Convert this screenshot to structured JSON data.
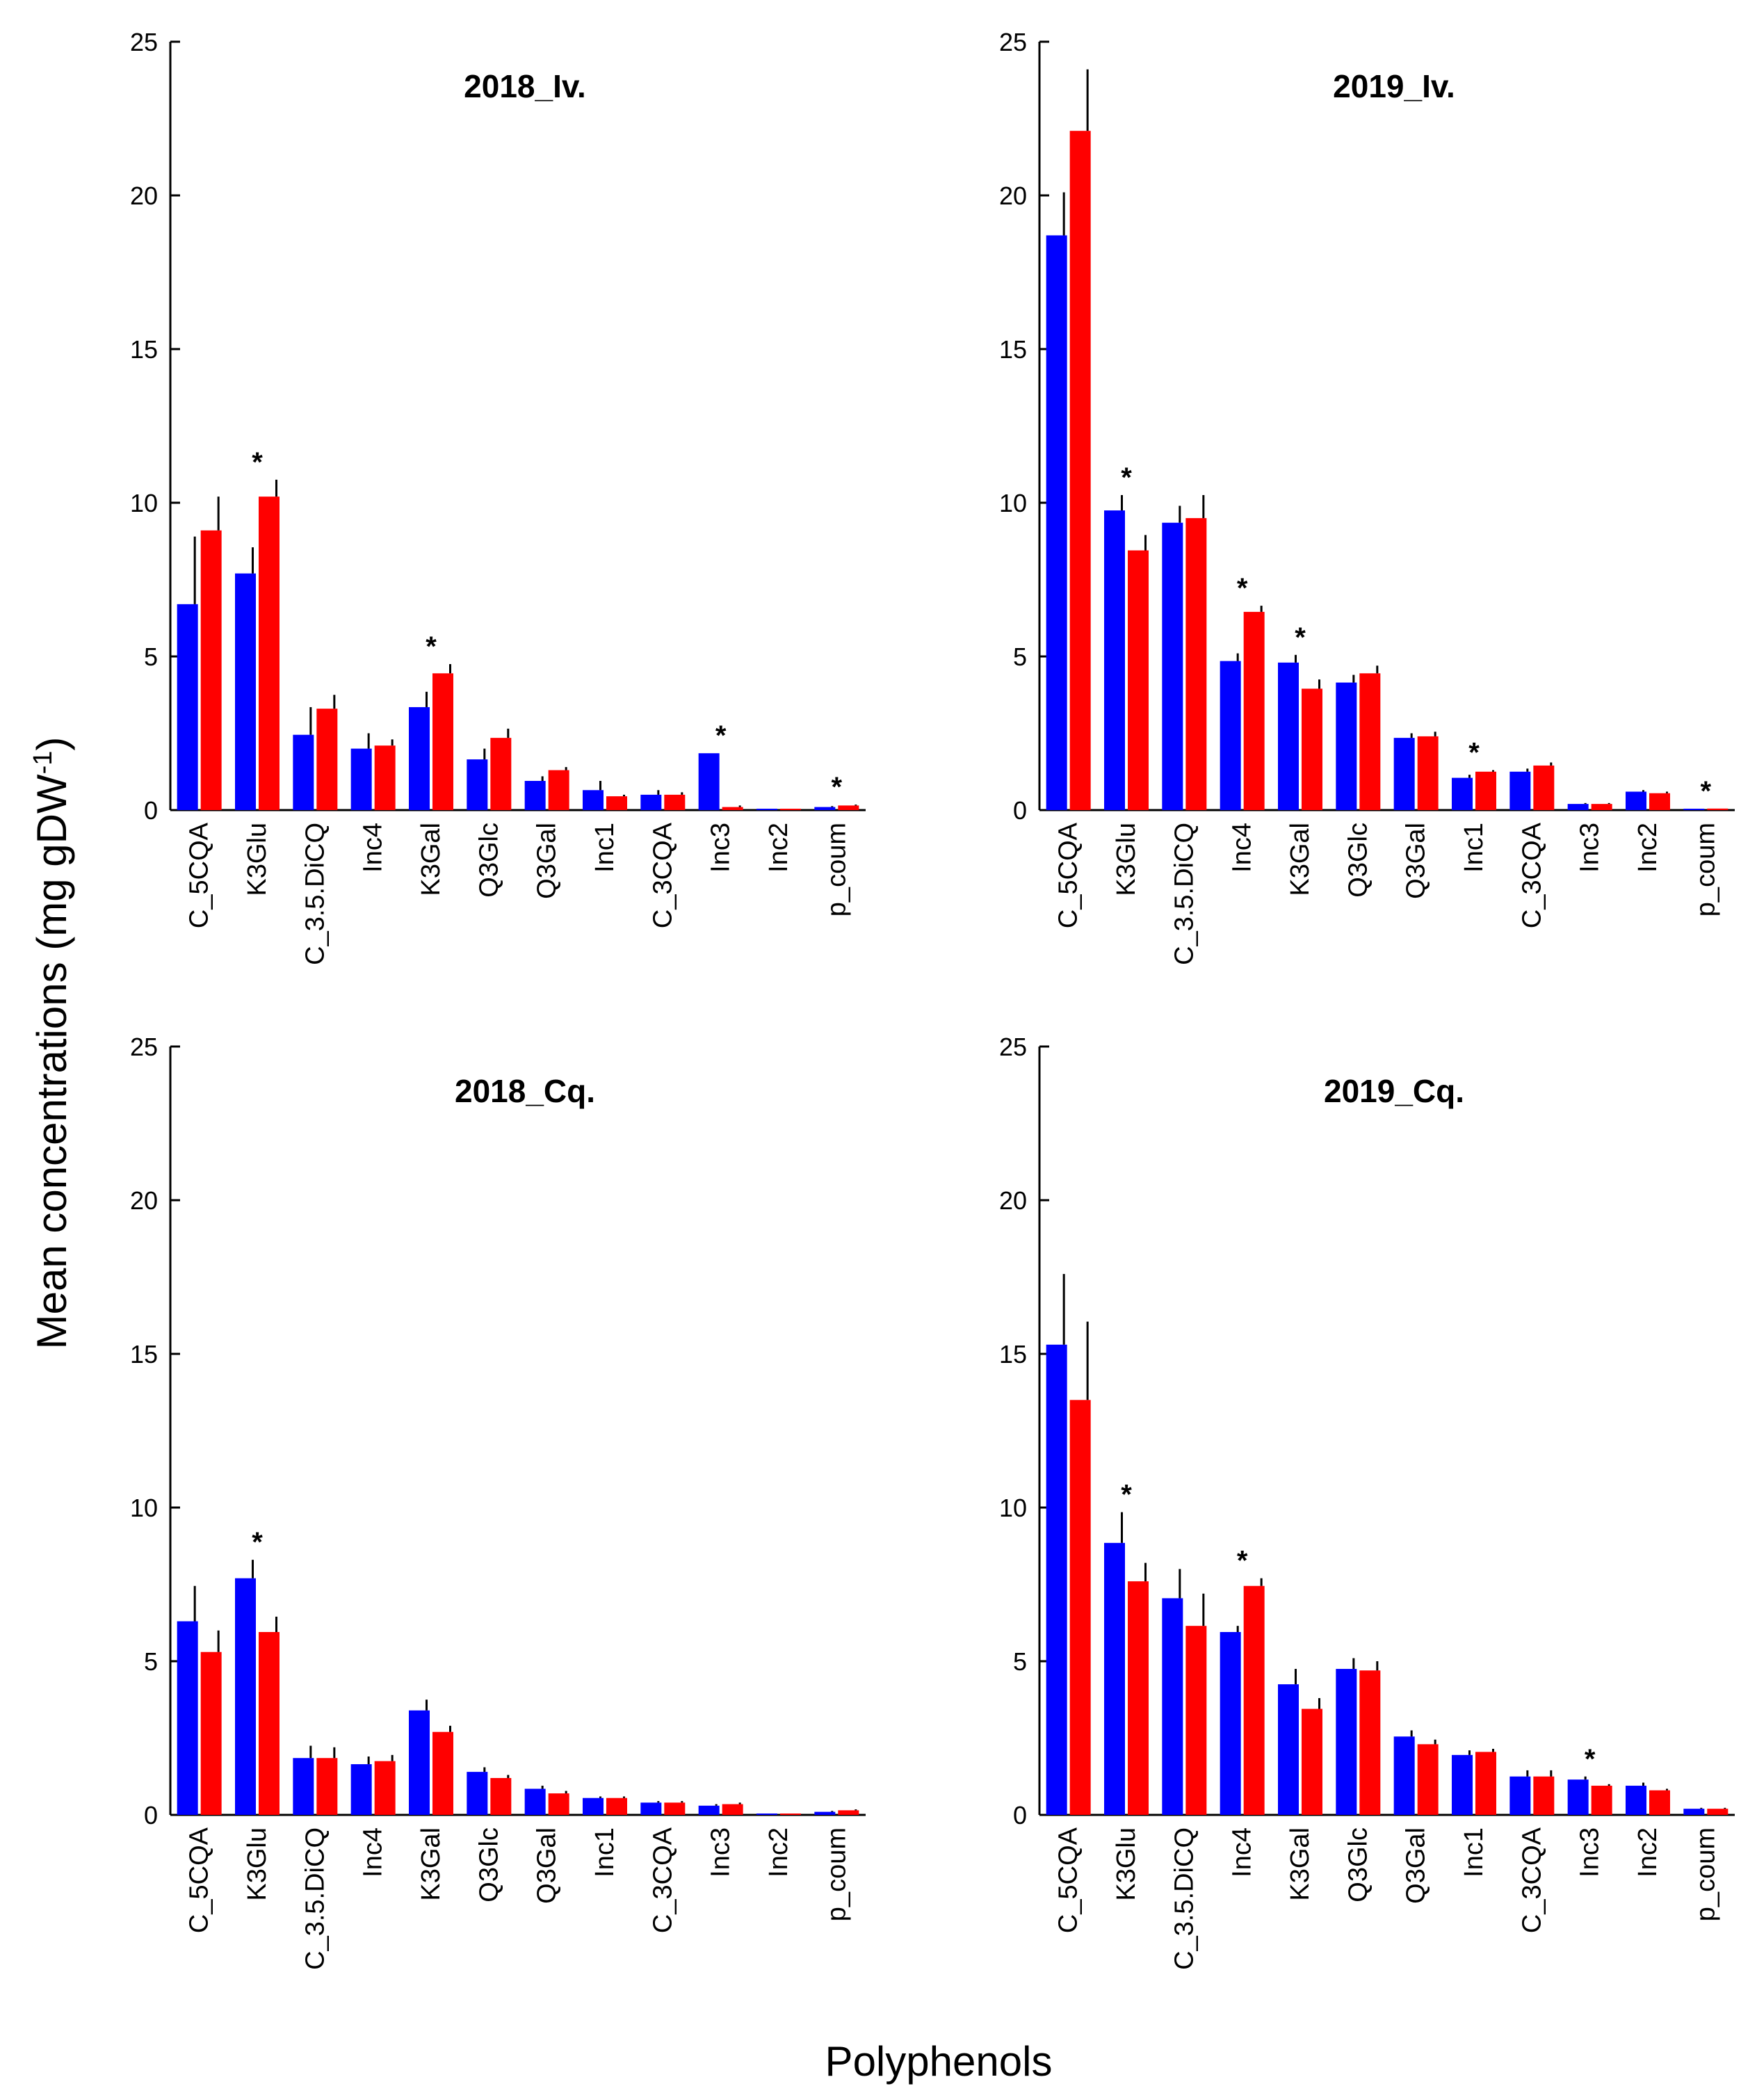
{
  "figure": {
    "ylabel_main": "Mean concentrations  (mg  gDW",
    "ylabel_sup": "-1",
    "ylabel_close": ")",
    "xlabel": "Polyphenols"
  },
  "colors": {
    "series1": "#0000ff",
    "series2": "#ff0000",
    "error": "#000000",
    "axis": "#000000"
  },
  "chart_data": [
    {
      "type": "bar",
      "title": "2018_Iv.",
      "ylim": [
        0,
        25
      ],
      "yticks": [
        0,
        5,
        10,
        15,
        20,
        25
      ],
      "categories": [
        "C_5CQA",
        "K3Glu",
        "C_3.5.DiCQ",
        "Inc4",
        "K3Gal",
        "Q3Glc",
        "Q3Gal",
        "Inc1",
        "C_3CQA",
        "Inc3",
        "Inc2",
        "p_coum"
      ],
      "series": [
        {
          "name": "blue",
          "values": [
            6.7,
            7.7,
            2.45,
            2.0,
            3.35,
            1.65,
            0.95,
            0.65,
            0.5,
            1.85,
            0.02,
            0.1
          ],
          "errors": [
            2.2,
            0.85,
            0.9,
            0.5,
            0.5,
            0.35,
            0.15,
            0.3,
            0.15,
            0.0,
            0.0,
            0.03
          ]
        },
        {
          "name": "red",
          "values": [
            9.1,
            10.2,
            3.3,
            2.1,
            4.45,
            2.35,
            1.3,
            0.45,
            0.5,
            0.1,
            0.02,
            0.15
          ],
          "errors": [
            1.1,
            0.55,
            0.45,
            0.2,
            0.3,
            0.3,
            0.1,
            0.05,
            0.08,
            0.05,
            0.0,
            0.03
          ]
        }
      ],
      "significance": [
        1,
        4,
        9,
        11
      ]
    },
    {
      "type": "bar",
      "title": "2019_Iv.",
      "ylim": [
        0,
        25
      ],
      "yticks": [
        0,
        5,
        10,
        15,
        20,
        25
      ],
      "categories": [
        "C_5CQA",
        "K3Glu",
        "C_3.5.DiCQ",
        "Inc4",
        "K3Gal",
        "Q3Glc",
        "Q3Gal",
        "Inc1",
        "C_3CQA",
        "Inc3",
        "Inc2",
        "p_coum"
      ],
      "series": [
        {
          "name": "blue",
          "values": [
            18.7,
            9.75,
            9.35,
            4.85,
            4.8,
            4.15,
            2.35,
            1.05,
            1.25,
            0.2,
            0.6,
            0.02
          ],
          "errors": [
            1.4,
            0.5,
            0.55,
            0.25,
            0.25,
            0.25,
            0.15,
            0.1,
            0.1,
            0.03,
            0.05,
            0.0
          ]
        },
        {
          "name": "red",
          "values": [
            22.1,
            8.45,
            9.5,
            6.45,
            3.95,
            4.45,
            2.4,
            1.25,
            1.45,
            0.2,
            0.55,
            0.05
          ],
          "errors": [
            2.0,
            0.5,
            0.75,
            0.2,
            0.3,
            0.25,
            0.15,
            0.05,
            0.1,
            0.03,
            0.05,
            0.0
          ]
        }
      ],
      "significance": [
        1,
        3,
        4,
        7,
        11
      ]
    },
    {
      "type": "bar",
      "title": "2018_Cq.",
      "ylim": [
        0,
        25
      ],
      "yticks": [
        0,
        5,
        10,
        15,
        20,
        25
      ],
      "categories": [
        "C_5CQA",
        "K3Glu",
        "C_3.5.DiCQ",
        "Inc4",
        "K3Gal",
        "Q3Glc",
        "Q3Gal",
        "Inc1",
        "C_3CQA",
        "Inc3",
        "Inc2",
        "p_coum"
      ],
      "series": [
        {
          "name": "blue",
          "values": [
            6.3,
            7.7,
            1.85,
            1.65,
            3.4,
            1.4,
            0.85,
            0.55,
            0.4,
            0.3,
            0.02,
            0.1
          ],
          "errors": [
            1.15,
            0.6,
            0.4,
            0.25,
            0.35,
            0.15,
            0.1,
            0.05,
            0.05,
            0.05,
            0.0,
            0.03
          ]
        },
        {
          "name": "red",
          "values": [
            5.3,
            5.95,
            1.85,
            1.75,
            2.7,
            1.2,
            0.7,
            0.55,
            0.4,
            0.35,
            0.02,
            0.15
          ],
          "errors": [
            0.7,
            0.5,
            0.35,
            0.2,
            0.2,
            0.1,
            0.08,
            0.05,
            0.05,
            0.05,
            0.0,
            0.03
          ]
        }
      ],
      "significance": [
        1
      ]
    },
    {
      "type": "bar",
      "title": "2019_Cq.",
      "ylim": [
        0,
        25
      ],
      "yticks": [
        0,
        5,
        10,
        15,
        20,
        25
      ],
      "categories": [
        "C_5CQA",
        "K3Glu",
        "C_3.5.DiCQ",
        "Inc4",
        "K3Gal",
        "Q3Glc",
        "Q3Gal",
        "Inc1",
        "C_3CQA",
        "Inc3",
        "Inc2",
        "p_coum"
      ],
      "series": [
        {
          "name": "blue",
          "values": [
            15.3,
            8.85,
            7.05,
            5.95,
            4.25,
            4.75,
            2.55,
            1.95,
            1.25,
            1.15,
            0.95,
            0.2
          ],
          "errors": [
            2.3,
            1.0,
            0.95,
            0.2,
            0.5,
            0.35,
            0.2,
            0.15,
            0.2,
            0.1,
            0.1,
            0.03
          ]
        },
        {
          "name": "red",
          "values": [
            13.5,
            7.6,
            6.15,
            7.45,
            3.45,
            4.7,
            2.3,
            2.05,
            1.25,
            0.95,
            0.8,
            0.2
          ],
          "errors": [
            2.55,
            0.6,
            1.05,
            0.25,
            0.35,
            0.3,
            0.15,
            0.1,
            0.2,
            0.05,
            0.05,
            0.03
          ]
        }
      ],
      "significance": [
        1,
        3,
        9
      ]
    }
  ]
}
